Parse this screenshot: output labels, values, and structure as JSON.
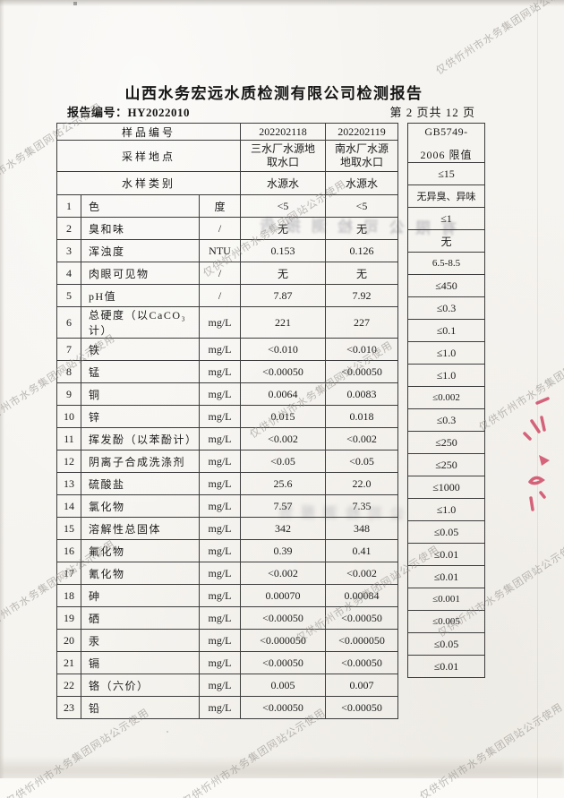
{
  "page": {
    "title": "山西水务宏远水质检测有限公司检测报告",
    "report_number": "报告编号：HY2022010",
    "page_indicator": "第 2 页共 12 页"
  },
  "table": {
    "header": {
      "sample_no_label": "样品编号",
      "sample_no_1": "202202118",
      "sample_no_2": "202202119",
      "location_label": "采样地点",
      "location_1": "三水厂水源地取水口",
      "location_2": "南水厂水源地取水口",
      "type_label": "水样类别",
      "type_1": "水源水",
      "type_2": "水源水",
      "limit_line1": "GB5749-",
      "limit_line2": "2006 限值"
    },
    "rows": [
      {
        "no": "1",
        "name": "色",
        "unit": "度",
        "v1": "<5",
        "v2": "<5",
        "limit": "≤15"
      },
      {
        "no": "2",
        "name": "臭和味",
        "unit": "/",
        "v1": "无",
        "v2": "无",
        "limit": "无异臭、异味"
      },
      {
        "no": "3",
        "name": "浑浊度",
        "unit": "NTU",
        "v1": "0.153",
        "v2": "0.126",
        "limit": "≤1"
      },
      {
        "no": "4",
        "name": "肉眼可见物",
        "unit": "/",
        "v1": "无",
        "v2": "无",
        "limit": "无"
      },
      {
        "no": "5",
        "name": "pH值",
        "unit": "/",
        "v1": "7.87",
        "v2": "7.92",
        "limit": "6.5-8.5"
      },
      {
        "no": "6",
        "name": "总硬度（以CaCO₃计）",
        "unit": "mg/L",
        "v1": "221",
        "v2": "227",
        "limit": "≤450"
      },
      {
        "no": "7",
        "name": "铁",
        "unit": "mg/L",
        "v1": "<0.010",
        "v2": "<0.010",
        "limit": "≤0.3"
      },
      {
        "no": "8",
        "name": "锰",
        "unit": "mg/L",
        "v1": "<0.00050",
        "v2": "<0.00050",
        "limit": "≤0.1"
      },
      {
        "no": "9",
        "name": "铜",
        "unit": "mg/L",
        "v1": "0.0064",
        "v2": "0.0083",
        "limit": "≤1.0"
      },
      {
        "no": "10",
        "name": "锌",
        "unit": "mg/L",
        "v1": "0.015",
        "v2": "0.018",
        "limit": "≤1.0"
      },
      {
        "no": "11",
        "name": "挥发酚（以苯酚计）",
        "unit": "mg/L",
        "v1": "<0.002",
        "v2": "<0.002",
        "limit": "≤0.002"
      },
      {
        "no": "12",
        "name": "阴离子合成洗涤剂",
        "unit": "mg/L",
        "v1": "<0.05",
        "v2": "<0.05",
        "limit": "≤0.3"
      },
      {
        "no": "13",
        "name": "硫酸盐",
        "unit": "mg/L",
        "v1": "25.6",
        "v2": "22.0",
        "limit": "≤250"
      },
      {
        "no": "14",
        "name": "氯化物",
        "unit": "mg/L",
        "v1": "7.57",
        "v2": "7.35",
        "limit": "≤250"
      },
      {
        "no": "15",
        "name": "溶解性总固体",
        "unit": "mg/L",
        "v1": "342",
        "v2": "348",
        "limit": "≤1000"
      },
      {
        "no": "16",
        "name": "氟化物",
        "unit": "mg/L",
        "v1": "0.39",
        "v2": "0.41",
        "limit": "≤1.0"
      },
      {
        "no": "17",
        "name": "氰化物",
        "unit": "mg/L",
        "v1": "<0.002",
        "v2": "<0.002",
        "limit": "≤0.05"
      },
      {
        "no": "18",
        "name": "砷",
        "unit": "mg/L",
        "v1": "0.00070",
        "v2": "0.00084",
        "limit": "≤0.01"
      },
      {
        "no": "19",
        "name": "硒",
        "unit": "mg/L",
        "v1": "<0.00050",
        "v2": "<0.00050",
        "limit": "≤0.01"
      },
      {
        "no": "20",
        "name": "汞",
        "unit": "mg/L",
        "v1": "<0.000050",
        "v2": "<0.000050",
        "limit": "≤0.001"
      },
      {
        "no": "21",
        "name": "镉",
        "unit": "mg/L",
        "v1": "<0.00050",
        "v2": "<0.00050",
        "limit": "≤0.005"
      },
      {
        "no": "22",
        "name": "铬（六价）",
        "unit": "mg/L",
        "v1": "0.005",
        "v2": "0.007",
        "limit": "≤0.05"
      },
      {
        "no": "23",
        "name": "铅",
        "unit": "mg/L",
        "v1": "<0.00050",
        "v2": "<0.00050",
        "limit": "≤0.01"
      }
    ]
  },
  "watermark": {
    "text": "仅供忻州市水务集团网站公示使用",
    "color": "#8f8c87"
  },
  "ghost": {
    "row2": "有限公司检测报告",
    "row14": "公司检测报告"
  },
  "ink": {
    "red_mark_color": "#cf4a66"
  }
}
